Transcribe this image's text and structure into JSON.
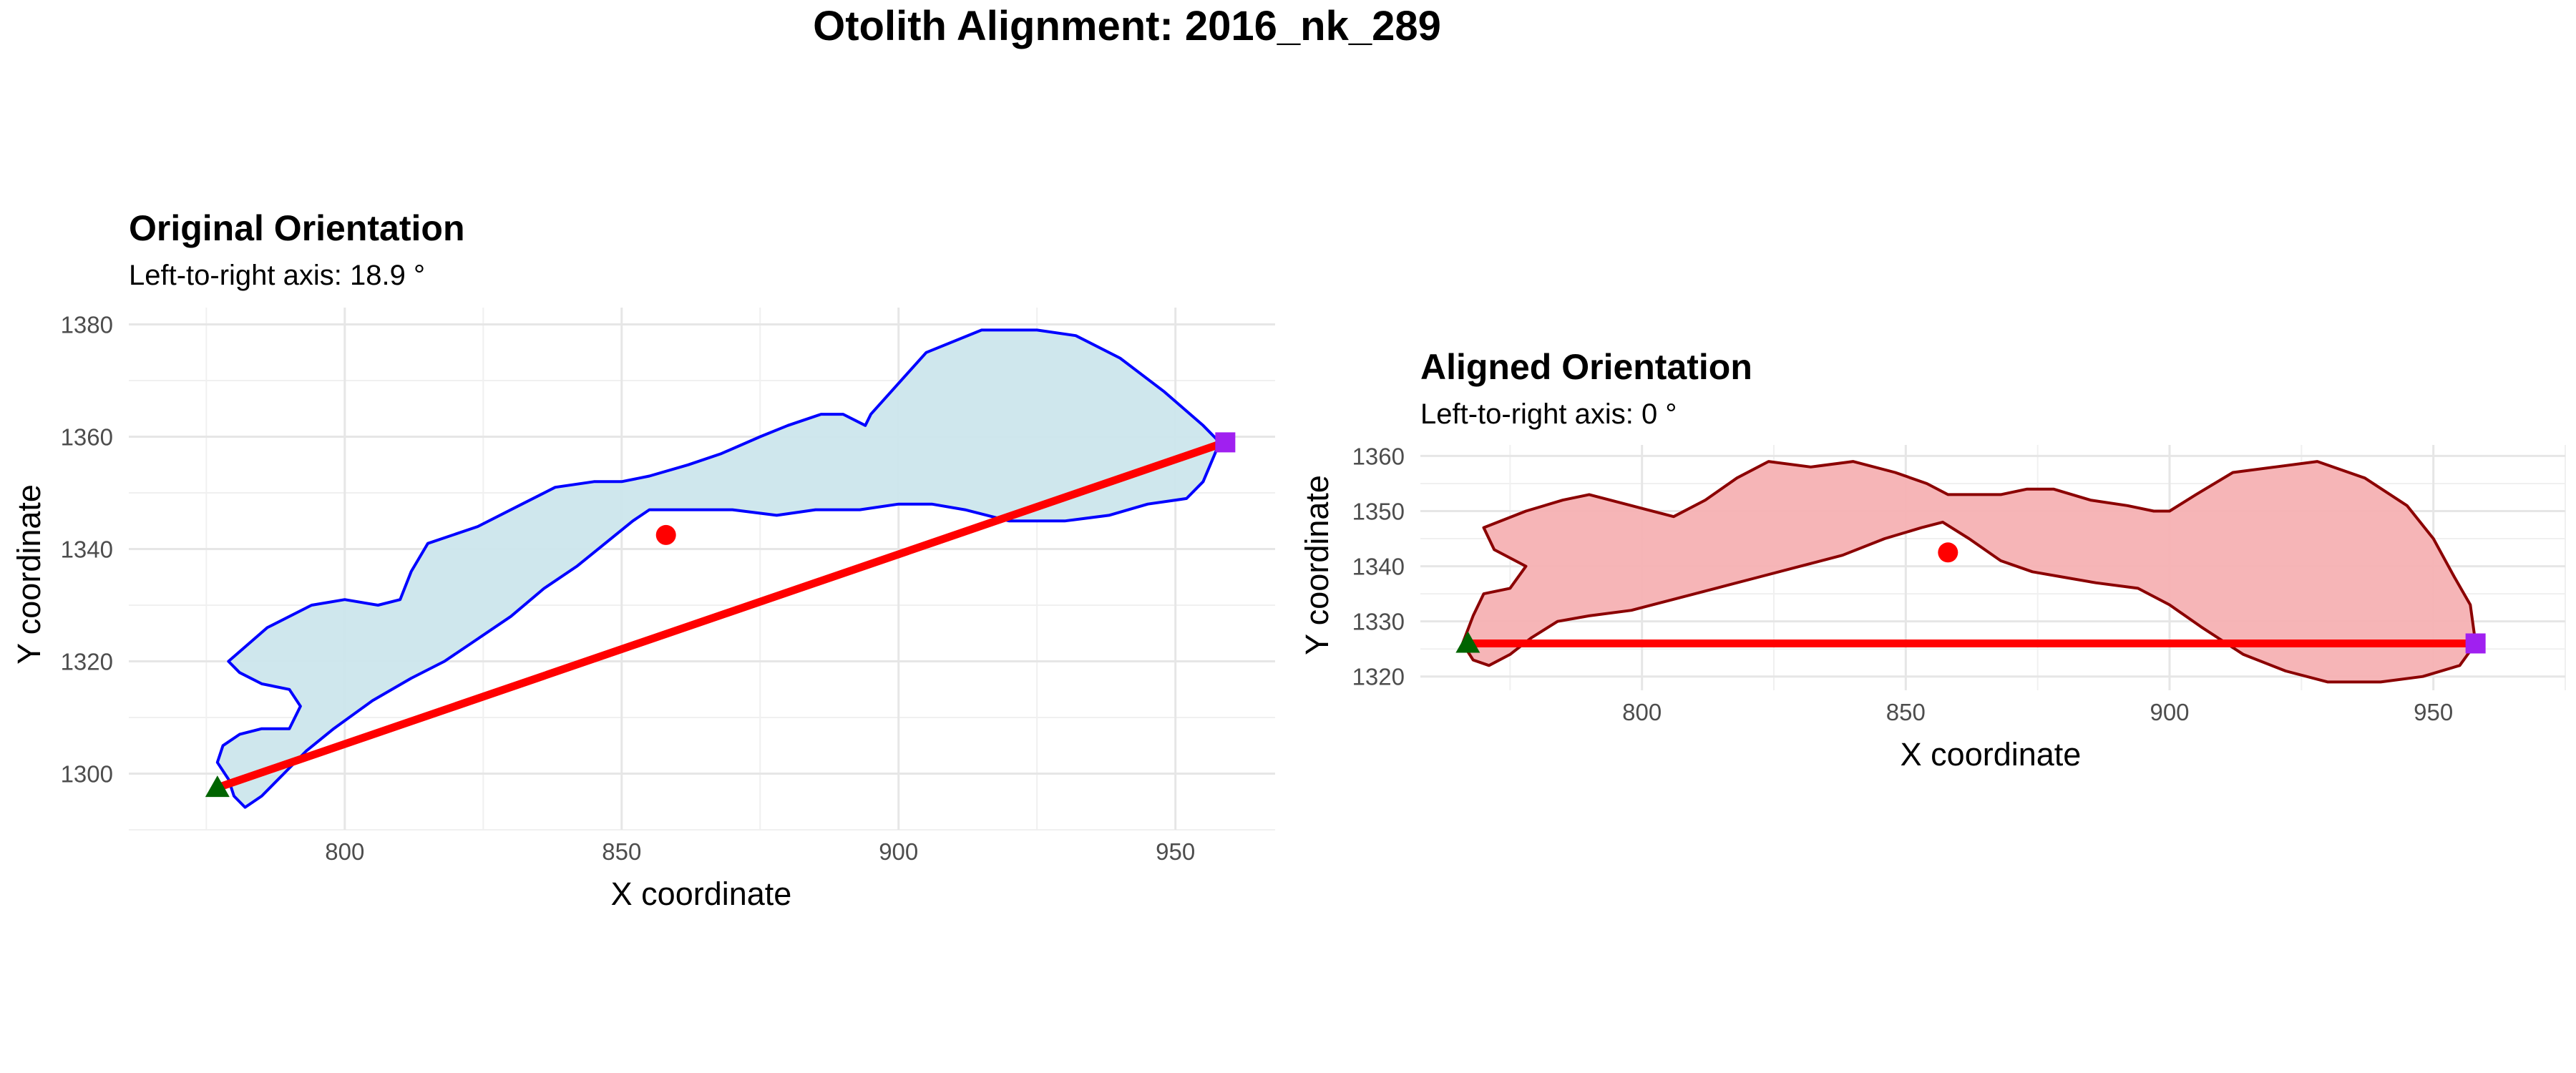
{
  "title": "Otolith Alignment: 2016_nk_289",
  "chart_data": [
    {
      "type": "line",
      "title": "Original Orientation",
      "subtitle": "Left-to-right axis: 18.9 °",
      "xlabel": "X coordinate",
      "ylabel": "Y coordinate",
      "xlim": [
        761,
        968
      ],
      "ylim": [
        1290,
        1383
      ],
      "xticks": [
        800,
        850,
        900,
        950
      ],
      "yticks": [
        1300,
        1320,
        1340,
        1360,
        1380
      ],
      "grid": true,
      "fill_color": "#cce6ec",
      "outline_color": "#0000ff",
      "outline_upper": [
        [
          779,
          1299
        ],
        [
          777,
          1302
        ],
        [
          778,
          1305
        ],
        [
          781,
          1307
        ],
        [
          785,
          1308
        ],
        [
          790,
          1308
        ],
        [
          792,
          1312
        ],
        [
          790,
          1315
        ],
        [
          785,
          1316
        ],
        [
          781,
          1318
        ],
        [
          779,
          1320
        ],
        [
          786,
          1326
        ],
        [
          794,
          1330
        ],
        [
          800,
          1331
        ],
        [
          806,
          1330
        ],
        [
          810,
          1331
        ],
        [
          812,
          1336
        ],
        [
          815,
          1341
        ],
        [
          824,
          1344
        ],
        [
          832,
          1348
        ],
        [
          838,
          1351
        ],
        [
          845,
          1352
        ],
        [
          850,
          1352
        ],
        [
          855,
          1353
        ],
        [
          862,
          1355
        ],
        [
          868,
          1357
        ],
        [
          875,
          1360
        ],
        [
          880,
          1362
        ],
        [
          886,
          1364
        ],
        [
          890,
          1364
        ],
        [
          894,
          1362
        ],
        [
          895,
          1364
        ],
        [
          905,
          1375
        ],
        [
          915,
          1379
        ],
        [
          925,
          1379
        ],
        [
          932,
          1378
        ],
        [
          940,
          1374
        ],
        [
          948,
          1368
        ],
        [
          955,
          1362
        ],
        [
          958,
          1359
        ]
      ],
      "outline_lower": [
        [
          958,
          1359
        ],
        [
          955,
          1352
        ],
        [
          952,
          1349
        ],
        [
          945,
          1348
        ],
        [
          938,
          1346
        ],
        [
          930,
          1345
        ],
        [
          920,
          1345
        ],
        [
          912,
          1347
        ],
        [
          906,
          1348
        ],
        [
          900,
          1348
        ],
        [
          893,
          1347
        ],
        [
          885,
          1347
        ],
        [
          878,
          1346
        ],
        [
          870,
          1347
        ],
        [
          862,
          1347
        ],
        [
          855,
          1347
        ],
        [
          852,
          1345
        ],
        [
          847,
          1341
        ],
        [
          842,
          1337
        ],
        [
          836,
          1333
        ],
        [
          830,
          1328
        ],
        [
          824,
          1324
        ],
        [
          818,
          1320
        ],
        [
          812,
          1317
        ],
        [
          805,
          1313
        ],
        [
          798,
          1308
        ],
        [
          793,
          1304
        ],
        [
          789,
          1300
        ],
        [
          785,
          1296
        ],
        [
          782,
          1294
        ],
        [
          780,
          1296
        ],
        [
          779,
          1299
        ]
      ],
      "axis_line": {
        "start": [
          777,
          1297.5
        ],
        "end": [
          959,
          1359
        ],
        "color": "#ff0000"
      },
      "centroid": {
        "x": 858,
        "y": 1342.5,
        "color": "#ff0000"
      },
      "start_point": {
        "x": 777,
        "y": 1297.5,
        "color": "#006400",
        "shape": "triangle"
      },
      "end_point": {
        "x": 959,
        "y": 1359,
        "color": "#a020f0",
        "shape": "square"
      }
    },
    {
      "type": "line",
      "title": "Aligned Orientation",
      "subtitle": "Left-to-right axis: 0 °",
      "xlabel": "X coordinate",
      "ylabel": "Y coordinate",
      "xlim": [
        758,
        975
      ],
      "ylim": [
        1317.5,
        1362
      ],
      "xticks": [
        800,
        850,
        900,
        950
      ],
      "yticks": [
        1320,
        1330,
        1340,
        1350,
        1360
      ],
      "grid": true,
      "fill_color": "#f5b1b3",
      "outline_color": "#8b0000",
      "outline_upper": [
        [
          766,
          1326
        ],
        [
          768,
          1331
        ],
        [
          770,
          1335
        ],
        [
          775,
          1336
        ],
        [
          778,
          1340
        ],
        [
          772,
          1343
        ],
        [
          770,
          1347
        ],
        [
          778,
          1350
        ],
        [
          785,
          1352
        ],
        [
          790,
          1353
        ],
        [
          798,
          1351
        ],
        [
          806,
          1349
        ],
        [
          812,
          1352
        ],
        [
          818,
          1356
        ],
        [
          824,
          1359
        ],
        [
          832,
          1358
        ],
        [
          840,
          1359
        ],
        [
          848,
          1357
        ],
        [
          854,
          1355
        ],
        [
          858,
          1353
        ],
        [
          862,
          1353
        ],
        [
          868,
          1353
        ],
        [
          873,
          1354
        ],
        [
          878,
          1354
        ],
        [
          885,
          1352
        ],
        [
          892,
          1351
        ],
        [
          897,
          1350
        ],
        [
          900,
          1350
        ],
        [
          905,
          1353
        ],
        [
          912,
          1357
        ],
        [
          920,
          1358
        ],
        [
          928,
          1359
        ],
        [
          937,
          1356
        ],
        [
          945,
          1351
        ],
        [
          950,
          1345
        ],
        [
          954,
          1338
        ],
        [
          957,
          1333
        ],
        [
          958,
          1326
        ]
      ],
      "outline_lower": [
        [
          958,
          1326
        ],
        [
          955,
          1322
        ],
        [
          948,
          1320
        ],
        [
          940,
          1319
        ],
        [
          930,
          1319
        ],
        [
          922,
          1321
        ],
        [
          914,
          1324
        ],
        [
          906,
          1329
        ],
        [
          900,
          1333
        ],
        [
          894,
          1336
        ],
        [
          886,
          1337
        ],
        [
          880,
          1338
        ],
        [
          874,
          1339
        ],
        [
          868,
          1341
        ],
        [
          862,
          1345
        ],
        [
          857,
          1348
        ],
        [
          853,
          1347
        ],
        [
          846,
          1345
        ],
        [
          838,
          1342
        ],
        [
          830,
          1340
        ],
        [
          822,
          1338
        ],
        [
          814,
          1336
        ],
        [
          806,
          1334
        ],
        [
          798,
          1332
        ],
        [
          790,
          1331
        ],
        [
          784,
          1330
        ],
        [
          779,
          1327
        ],
        [
          775,
          1324
        ],
        [
          771,
          1322
        ],
        [
          768,
          1323
        ],
        [
          766,
          1326
        ]
      ],
      "axis_line": {
        "start": [
          767,
          1326
        ],
        "end": [
          958,
          1326
        ],
        "color": "#ff0000"
      },
      "centroid": {
        "x": 858,
        "y": 1342.5,
        "color": "#ff0000"
      },
      "start_point": {
        "x": 767,
        "y": 1326,
        "color": "#006400",
        "shape": "triangle"
      },
      "end_point": {
        "x": 958,
        "y": 1326,
        "color": "#a020f0",
        "shape": "square"
      }
    }
  ]
}
